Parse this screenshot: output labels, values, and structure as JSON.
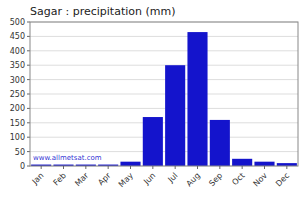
{
  "chart_data": {
    "type": "bar",
    "title": "Sagar : precipitation (mm)",
    "categories": [
      "Jan",
      "Feb",
      "Mar",
      "Apr",
      "May",
      "Jun",
      "Jul",
      "Aug",
      "Sep",
      "Oct",
      "Nov",
      "Dec"
    ],
    "values": [
      5,
      5,
      5,
      5,
      15,
      170,
      350,
      465,
      160,
      25,
      15,
      10
    ],
    "color": "#1414CC",
    "ylim": [
      0,
      500
    ],
    "yticks": [
      0,
      50,
      100,
      150,
      200,
      250,
      300,
      350,
      400,
      450,
      500
    ],
    "grid": true,
    "annotation": "www.allmetsat.com"
  }
}
